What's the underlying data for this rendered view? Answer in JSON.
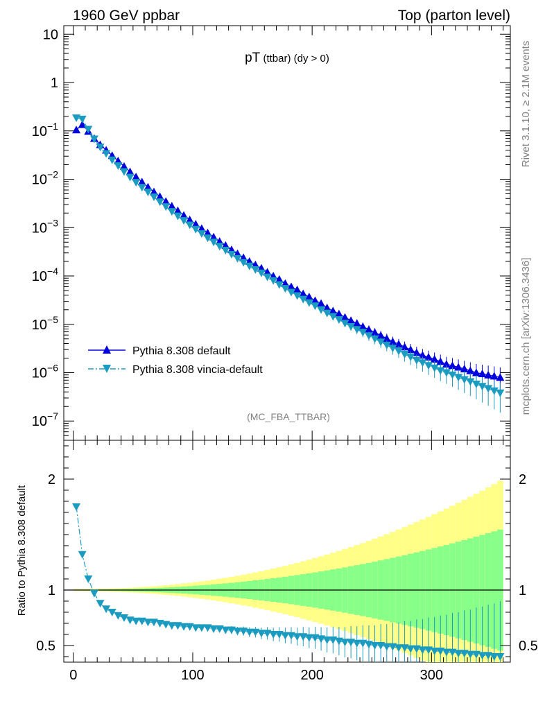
{
  "header": {
    "left": "1960 GeV ppbar",
    "right": "Top (parton level)"
  },
  "title_main": "pT",
  "title_sub": " (ttbar)  (dy > 0)",
  "watermark": "(MC_FBA_TTBAR)",
  "side_text_top": "Rivet 3.1.10, ≥ 2.1M events",
  "side_text_bottom": "mcplots.cern.ch [arXiv:1306.3436]",
  "colors": {
    "default": "#0000dd",
    "vincia": "#1a9bbf",
    "band_yellow": "#ffff88",
    "band_green": "#88ff88"
  },
  "chart_data": [
    {
      "type": "scatter",
      "panel": "main",
      "yscale": "log",
      "xlim": [
        -8,
        366
      ],
      "ylim": [
        4e-08,
        15
      ],
      "y_tick_labels": [
        "10^-7",
        "10^-6",
        "10^-5",
        "10^-4",
        "10^-3",
        "10^-2",
        "10^-1",
        "1",
        "10"
      ],
      "legend_position": "lower-left",
      "series": [
        {
          "name": "Pythia 8.308 default",
          "marker": "triangle-up",
          "line": "solid",
          "points": [
            [
              2.5,
              0.105
            ],
            [
              7.5,
              0.135
            ],
            [
              12.5,
              0.098
            ],
            [
              17.5,
              0.07
            ],
            [
              22.5,
              0.052
            ],
            [
              27.5,
              0.04
            ],
            [
              32.5,
              0.031
            ],
            [
              37.5,
              0.024
            ],
            [
              42.5,
              0.0185
            ],
            [
              47.5,
              0.0143
            ],
            [
              52.5,
              0.0112
            ],
            [
              57.5,
              0.0088
            ],
            [
              62.5,
              0.0069
            ],
            [
              67.5,
              0.0055
            ],
            [
              72.5,
              0.0044
            ],
            [
              77.5,
              0.0035
            ],
            [
              82.5,
              0.0028
            ],
            [
              87.5,
              0.00225
            ],
            [
              92.5,
              0.0018
            ],
            [
              97.5,
              0.00145
            ],
            [
              102.5,
              0.00118
            ],
            [
              107.5,
              0.00096
            ],
            [
              112.5,
              0.00078
            ],
            [
              117.5,
              0.00064
            ],
            [
              122.5,
              0.00052
            ],
            [
              127.5,
              0.00043
            ],
            [
              132.5,
              0.00035
            ],
            [
              137.5,
              0.00029
            ],
            [
              142.5,
              0.00024
            ],
            [
              147.5,
              0.0002
            ],
            [
              152.5,
              0.00017
            ],
            [
              157.5,
              0.000145
            ],
            [
              162.5,
              0.00012
            ],
            [
              167.5,
              0.0001
            ],
            [
              172.5,
              8.5e-05
            ],
            [
              177.5,
              7e-05
            ],
            [
              182.5,
              6e-05
            ],
            [
              187.5,
              5.2e-05
            ],
            [
              192.5,
              4.3e-05
            ],
            [
              197.5,
              3.7e-05
            ],
            [
              202.5,
              3.1e-05
            ],
            [
              207.5,
              2.7e-05
            ],
            [
              212.5,
              2.2e-05
            ],
            [
              217.5,
              1.9e-05
            ],
            [
              222.5,
              1.65e-05
            ],
            [
              227.5,
              1.4e-05
            ],
            [
              232.5,
              1.2e-05
            ],
            [
              237.5,
              1.05e-05
            ],
            [
              242.5,
              9e-06
            ],
            [
              247.5,
              7.8e-06
            ],
            [
              252.5,
              6.8e-06
            ],
            [
              257.5,
              5.9e-06
            ],
            [
              262.5,
              5.1e-06
            ],
            [
              267.5,
              4.4e-06
            ],
            [
              272.5,
              3.9e-06
            ],
            [
              277.5,
              3.4e-06
            ],
            [
              282.5,
              3e-06
            ],
            [
              287.5,
              2.6e-06
            ],
            [
              292.5,
              2.3e-06
            ],
            [
              297.5,
              2.1e-06
            ],
            [
              302.5,
              1.9e-06
            ],
            [
              307.5,
              1.7e-06
            ],
            [
              312.5,
              1.5e-06
            ],
            [
              317.5,
              1.4e-06
            ],
            [
              322.5,
              1.3e-06
            ],
            [
              327.5,
              1.2e-06
            ],
            [
              332.5,
              1.1e-06
            ],
            [
              337.5,
              1e-06
            ],
            [
              342.5,
              9.5e-07
            ],
            [
              347.5,
              9e-07
            ],
            [
              352.5,
              8.5e-07
            ],
            [
              357.5,
              8e-07
            ]
          ]
        },
        {
          "name": "Pythia 8.308 vincia-default",
          "marker": "triangle-down",
          "line": "dash-dot",
          "points": [
            [
              2.5,
              0.185
            ],
            [
              7.5,
              0.175
            ],
            [
              12.5,
              0.108
            ],
            [
              17.5,
              0.068
            ],
            [
              22.5,
              0.046
            ],
            [
              27.5,
              0.034
            ],
            [
              32.5,
              0.025
            ],
            [
              37.5,
              0.019
            ],
            [
              42.5,
              0.0143
            ],
            [
              47.5,
              0.011
            ],
            [
              52.5,
              0.0086
            ],
            [
              57.5,
              0.0068
            ],
            [
              62.5,
              0.0054
            ],
            [
              67.5,
              0.0043
            ],
            [
              72.5,
              0.0034
            ],
            [
              77.5,
              0.0027
            ],
            [
              82.5,
              0.00215
            ],
            [
              87.5,
              0.00173
            ],
            [
              92.5,
              0.0014
            ],
            [
              97.5,
              0.00113
            ],
            [
              102.5,
              0.00092
            ],
            [
              107.5,
              0.00075
            ],
            [
              112.5,
              0.00061
            ],
            [
              117.5,
              0.0005
            ],
            [
              122.5,
              0.00041
            ],
            [
              127.5,
              0.00034
            ],
            [
              132.5,
              0.00028
            ],
            [
              137.5,
              0.00023
            ],
            [
              142.5,
              0.00019
            ],
            [
              147.5,
              0.00016
            ],
            [
              152.5,
              0.000135
            ],
            [
              157.5,
              0.000115
            ],
            [
              162.5,
              9.5e-05
            ],
            [
              167.5,
              8e-05
            ],
            [
              172.5,
              6.6e-05
            ],
            [
              177.5,
              5.5e-05
            ],
            [
              182.5,
              4.6e-05
            ],
            [
              187.5,
              3.9e-05
            ],
            [
              192.5,
              3.3e-05
            ],
            [
              197.5,
              2.8e-05
            ],
            [
              202.5,
              2.4e-05
            ],
            [
              207.5,
              2e-05
            ],
            [
              212.5,
              1.7e-05
            ],
            [
              217.5,
              1.45e-05
            ],
            [
              222.5,
              1.25e-05
            ],
            [
              227.5,
              1.05e-05
            ],
            [
              232.5,
              9e-06
            ],
            [
              237.5,
              7.8e-06
            ],
            [
              242.5,
              6.8e-06
            ],
            [
              247.5,
              5.8e-06
            ],
            [
              252.5,
              5e-06
            ],
            [
              257.5,
              4.3e-06
            ],
            [
              262.5,
              3.7e-06
            ],
            [
              267.5,
              3.2e-06
            ],
            [
              272.5,
              2.8e-06
            ],
            [
              277.5,
              2.4e-06
            ],
            [
              282.5,
              2.1e-06
            ],
            [
              287.5,
              1.8e-06
            ],
            [
              292.5,
              1.6e-06
            ],
            [
              297.5,
              1.4e-06
            ],
            [
              302.5,
              1.25e-06
            ],
            [
              307.5,
              1.1e-06
            ],
            [
              312.5,
              1e-06
            ],
            [
              317.5,
              9e-07
            ],
            [
              322.5,
              8e-07
            ],
            [
              327.5,
              7.2e-07
            ],
            [
              332.5,
              6.5e-07
            ],
            [
              337.5,
              5.8e-07
            ],
            [
              342.5,
              5.2e-07
            ],
            [
              347.5,
              4.7e-07
            ],
            [
              352.5,
              4.2e-07
            ],
            [
              357.5,
              3.8e-07
            ]
          ]
        }
      ]
    },
    {
      "type": "scatter",
      "panel": "ratio",
      "ylabel": "Ratio to Pythia 8.308 default",
      "xlim": [
        -8,
        366
      ],
      "ylim": [
        0.35,
        2.35
      ],
      "x_ticks": [
        0,
        100,
        200,
        300
      ],
      "y_ticks": [
        0.5,
        1,
        2
      ],
      "reference_line": 1,
      "series": [
        {
          "name": "Pythia 8.308 vincia-default",
          "marker": "triangle-down",
          "line": "dash-dot",
          "points": [
            [
              2.5,
              1.75
            ],
            [
              7.5,
              1.32
            ],
            [
              12.5,
              1.1
            ],
            [
              17.5,
              0.97
            ],
            [
              22.5,
              0.88
            ],
            [
              27.5,
              0.83
            ],
            [
              32.5,
              0.8
            ],
            [
              37.5,
              0.77
            ],
            [
              42.5,
              0.75
            ],
            [
              47.5,
              0.73
            ],
            [
              52.5,
              0.72
            ],
            [
              57.5,
              0.72
            ],
            [
              62.5,
              0.71
            ],
            [
              67.5,
              0.71
            ],
            [
              72.5,
              0.7
            ],
            [
              77.5,
              0.69
            ],
            [
              82.5,
              0.68
            ],
            [
              87.5,
              0.68
            ],
            [
              92.5,
              0.67
            ],
            [
              97.5,
              0.67
            ],
            [
              102.5,
              0.66
            ],
            [
              107.5,
              0.66
            ],
            [
              112.5,
              0.66
            ],
            [
              117.5,
              0.65
            ],
            [
              122.5,
              0.65
            ],
            [
              127.5,
              0.64
            ],
            [
              132.5,
              0.64
            ],
            [
              137.5,
              0.63
            ],
            [
              142.5,
              0.63
            ],
            [
              147.5,
              0.62
            ],
            [
              152.5,
              0.62
            ],
            [
              157.5,
              0.61
            ],
            [
              162.5,
              0.61
            ],
            [
              167.5,
              0.6
            ],
            [
              172.5,
              0.6
            ],
            [
              177.5,
              0.59
            ],
            [
              182.5,
              0.59
            ],
            [
              187.5,
              0.58
            ],
            [
              192.5,
              0.58
            ],
            [
              197.5,
              0.57
            ],
            [
              202.5,
              0.57
            ],
            [
              207.5,
              0.56
            ],
            [
              212.5,
              0.55
            ],
            [
              217.5,
              0.55
            ],
            [
              222.5,
              0.54
            ],
            [
              227.5,
              0.53
            ],
            [
              232.5,
              0.53
            ],
            [
              237.5,
              0.52
            ],
            [
              242.5,
              0.52
            ],
            [
              247.5,
              0.51
            ],
            [
              252.5,
              0.5
            ],
            [
              257.5,
              0.5
            ],
            [
              262.5,
              0.49
            ],
            [
              267.5,
              0.49
            ],
            [
              272.5,
              0.48
            ],
            [
              277.5,
              0.48
            ],
            [
              282.5,
              0.47
            ],
            [
              287.5,
              0.47
            ],
            [
              292.5,
              0.46
            ],
            [
              297.5,
              0.46
            ],
            [
              302.5,
              0.45
            ],
            [
              307.5,
              0.45
            ],
            [
              312.5,
              0.44
            ],
            [
              317.5,
              0.44
            ],
            [
              322.5,
              0.43
            ],
            [
              327.5,
              0.43
            ],
            [
              332.5,
              0.42
            ],
            [
              337.5,
              0.42
            ],
            [
              342.5,
              0.41
            ],
            [
              347.5,
              0.41
            ],
            [
              352.5,
              0.4
            ],
            [
              357.5,
              0.4
            ]
          ]
        }
      ]
    }
  ]
}
